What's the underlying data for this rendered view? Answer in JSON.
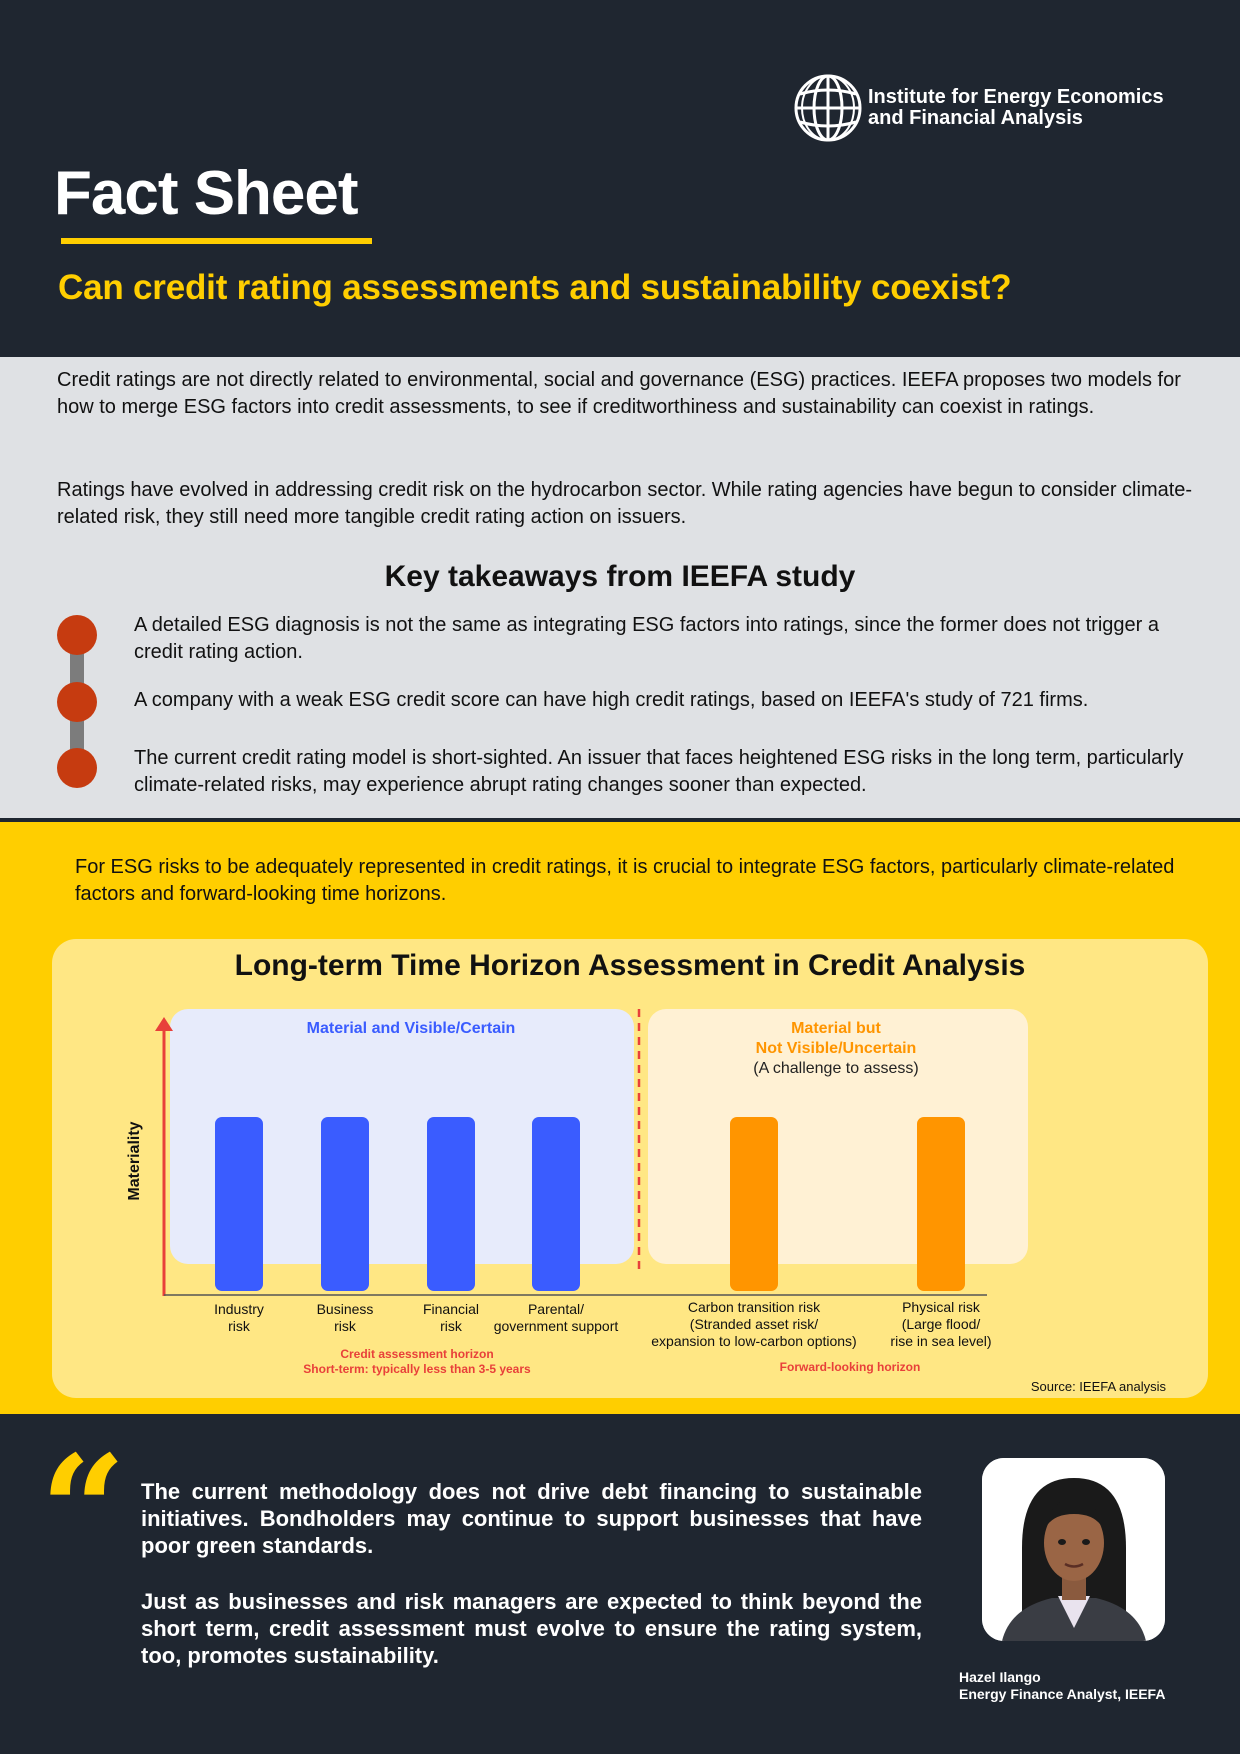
{
  "header": {
    "org_name": "Institute for Energy Economics and Financial Analysis",
    "doc_type": "Fact Sheet",
    "question": "Can credit rating assessments and sustainability coexist?"
  },
  "intro": {
    "paragraph1": "Credit ratings are not directly related to environmental, social and governance (ESG) practices. IEEFA proposes two models for how to merge ESG factors into credit assessments, to see if creditworthiness and sustainability can coexist in ratings.",
    "paragraph2": "Ratings have evolved in addressing credit risk on the hydrocarbon sector. While rating agencies have begun to consider climate-related risk, they still need more tangible credit rating action on issuers."
  },
  "takeaways": {
    "title": "Key takeaways from IEEFA study",
    "items": [
      "A detailed ESG diagnosis is not the same as integrating ESG factors into ratings, since the former does not trigger a credit rating action.",
      "A company with a weak ESG credit score can have high credit ratings, based on IEEFA's study of 721 firms.",
      "The current credit rating model is short-sighted. An issuer that faces heightened ESG risks in the long term, particularly climate-related risks, may experience abrupt rating changes sooner than expected."
    ]
  },
  "esg_note": "For ESG risks to be adequately represented in credit ratings, it is crucial to integrate ESG factors, particularly climate-related factors and forward-looking time horizons.",
  "chart": {
    "title": "Long-term Time Horizon Assessment in Credit Analysis",
    "y_axis_label": "Materiality",
    "left_panel_title": "Material and Visible/Certain",
    "right_panel_title_line1": "Material but",
    "right_panel_title_line2": "Not Visible/Uncertain",
    "right_panel_subtitle": "(A challenge to assess)",
    "left_horizon_line1": "Credit assessment horizon",
    "left_horizon_line2": "Short-term: typically less than 3-5 years",
    "right_horizon": "Forward-looking horizon",
    "source": "Source: IEEFA analysis"
  },
  "chart_data": {
    "type": "bar",
    "categories": [
      [
        "Industry",
        "risk"
      ],
      [
        "Business",
        "risk"
      ],
      [
        "Financial",
        "risk"
      ],
      [
        "Parental/",
        "government support"
      ],
      [
        "Carbon transition risk",
        "(Stranded asset risk/",
        "expansion to low-carbon options)"
      ],
      [
        "Physical risk",
        "(Large flood/",
        "rise in sea level)"
      ]
    ],
    "values": [
      1,
      1,
      1,
      1,
      1,
      1
    ],
    "groups": [
      "visible",
      "visible",
      "visible",
      "visible",
      "uncertain",
      "uncertain"
    ],
    "colors": {
      "visible": "#3a5cff",
      "uncertain": "#ff9500",
      "axis": "#e8403a"
    },
    "ylabel": "Materiality",
    "grid": false
  },
  "quote": {
    "paragraph1": "The current methodology does not drive debt financing to sustainable initiatives. Bondholders may continue to support businesses that have poor green standards.",
    "paragraph2": "Just as businesses and risk managers are expected to think beyond the short term, credit assessment must evolve to ensure the rating system, too, promotes sustainability.",
    "author_name": "Hazel Ilango",
    "author_title": "Energy Finance Analyst, IEEFA"
  }
}
